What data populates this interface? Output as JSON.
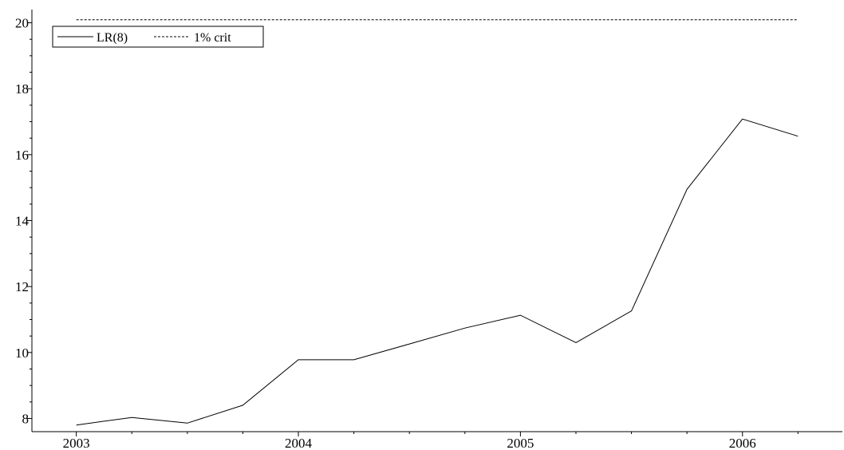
{
  "chart_data": {
    "type": "line",
    "title": "",
    "xlabel": "",
    "ylabel": "",
    "xlim": [
      2002.8,
      2006.45
    ],
    "ylim": [
      7.6,
      20.4
    ],
    "x_ticks": [
      2003,
      2004,
      2005,
      2006
    ],
    "x_tick_labels": [
      "2003",
      "2004",
      "2005",
      "2006"
    ],
    "y_ticks": [
      8,
      10,
      12,
      14,
      16,
      18,
      20
    ],
    "y_tick_labels": [
      "8",
      "10",
      "12",
      "14",
      "16",
      "18",
      "20"
    ],
    "grid": false,
    "legend": {
      "placement": "top-left",
      "boxed": true
    },
    "series": [
      {
        "name": "LR(8)",
        "style": "solid",
        "color": "#000000",
        "x": [
          2003.0,
          2003.25,
          2003.5,
          2003.75,
          2004.0,
          2004.25,
          2004.5,
          2004.75,
          2005.0,
          2005.25,
          2005.5,
          2005.75,
          2006.0,
          2006.25
        ],
        "values": [
          7.8,
          8.03,
          7.86,
          8.4,
          9.78,
          9.78,
          10.26,
          10.74,
          11.13,
          10.3,
          11.26,
          14.95,
          17.08,
          16.56
        ]
      },
      {
        "name": "1% crit",
        "style": "dashed",
        "color": "#000000",
        "x": [
          2003.0,
          2006.25
        ],
        "values": [
          20.09,
          20.09
        ]
      }
    ]
  }
}
